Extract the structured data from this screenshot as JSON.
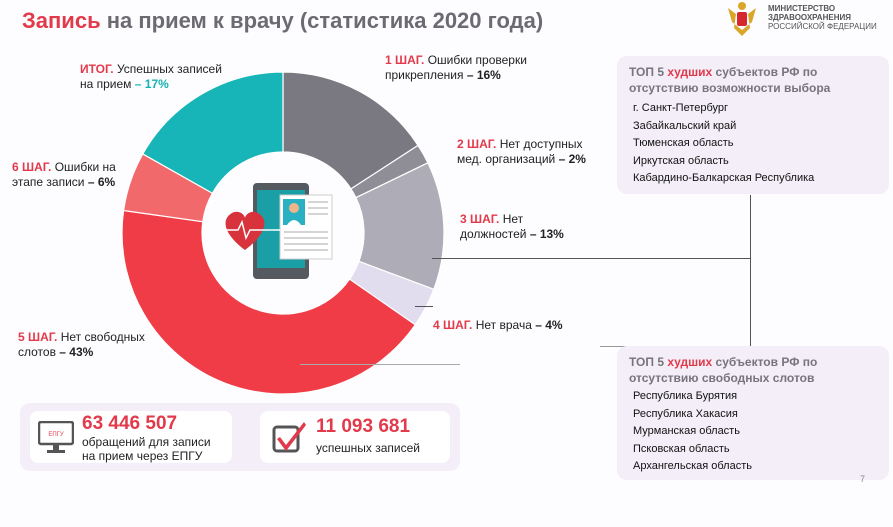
{
  "title": {
    "highlight": "Запись",
    "rest": " на прием к врачу (статистика 2020 года)"
  },
  "ministry": {
    "line1": "МИНИСТЕРСТВО",
    "line2": "ЗДРАВООХРАНЕНИЯ",
    "line3": "РОССИЙСКОЙ ФЕДЕРАЦИИ"
  },
  "chart_data": {
    "type": "pie",
    "donut": true,
    "slices": [
      {
        "step": "1 ШАГ.",
        "label": "Ошибки проверки прикрепления",
        "value": 16,
        "color": "#7a7880"
      },
      {
        "step": "2 ШАГ.",
        "label": "Нет доступных мед. организаций",
        "value": 2,
        "color": "#8f8d96"
      },
      {
        "step": "3 ШАГ.",
        "label": "Нет должностей",
        "value": 13,
        "color": "#adacb7"
      },
      {
        "step": "4 ШАГ.",
        "label": "Нет врача",
        "value": 4,
        "color": "#e2dcef"
      },
      {
        "step": "5 ШАГ.",
        "label": "Нет свободных слотов",
        "value": 43,
        "color": "#f03c47"
      },
      {
        "step": "6 ШАГ.",
        "label": "Ошибки на этапе записи",
        "value": 6,
        "color": "#f2696c"
      },
      {
        "step": "ИТОГ.",
        "label": "Успешных записей на прием",
        "value": 17,
        "color": "#17b5b8"
      }
    ]
  },
  "labels": {
    "s1": {
      "step": "1 ШАГ.",
      "l1": " Ошибки проверки",
      "l2": "прикрепления ",
      "pct": "– 16%"
    },
    "s2": {
      "step": "2 ШАГ.",
      "l1": " Нет доступных",
      "l2": "мед. организаций ",
      "pct": "– 2%"
    },
    "s3": {
      "step": "3 ШАГ.",
      "l1": " Нет",
      "l2": "должностей ",
      "pct": "– 13%"
    },
    "s4": {
      "step": "4 ШАГ.",
      "l1": " Нет врача ",
      "pct": "– 4%"
    },
    "s5": {
      "step": "5 ШАГ.",
      "l1": " Нет свободных",
      "l2": "слотов ",
      "pct": "– 43%"
    },
    "s6": {
      "step": "6 ШАГ.",
      "l1": " Ошибки на",
      "l2": "этапе записи ",
      "pct": "– 6%"
    },
    "itog": {
      "step": "ИТОГ.",
      "l1": " Успешных записей",
      "l2": "на прием ",
      "pct": "– 17%"
    }
  },
  "box_choice": {
    "h1": "ТОП 5 ",
    "h2": "худших",
    "h3": " субъектов РФ по отсутствию возможности выбора",
    "items": [
      "г. Санкт-Петербург",
      "Забайкальский край",
      "Тюменская область",
      "Иркутская область",
      "Кабардино-Балкарская Республика"
    ]
  },
  "box_slots": {
    "h1": "ТОП 5 ",
    "h2": "худших",
    "h3": " субъектов РФ по отсутствию свободных слотов",
    "items": [
      "Республика Бурятия",
      "Республика Хакасия",
      "Мурманская область",
      "Псковская область",
      "Архангельская область"
    ]
  },
  "stats": {
    "requests": {
      "value": "63 446 507",
      "l1": "обращений для записи",
      "l2": "на прием через ЕПГУ",
      "icon_text": "ЕПГУ"
    },
    "success": {
      "value": "11 093 681",
      "l1": "успешных записей"
    }
  },
  "page_number": "7"
}
